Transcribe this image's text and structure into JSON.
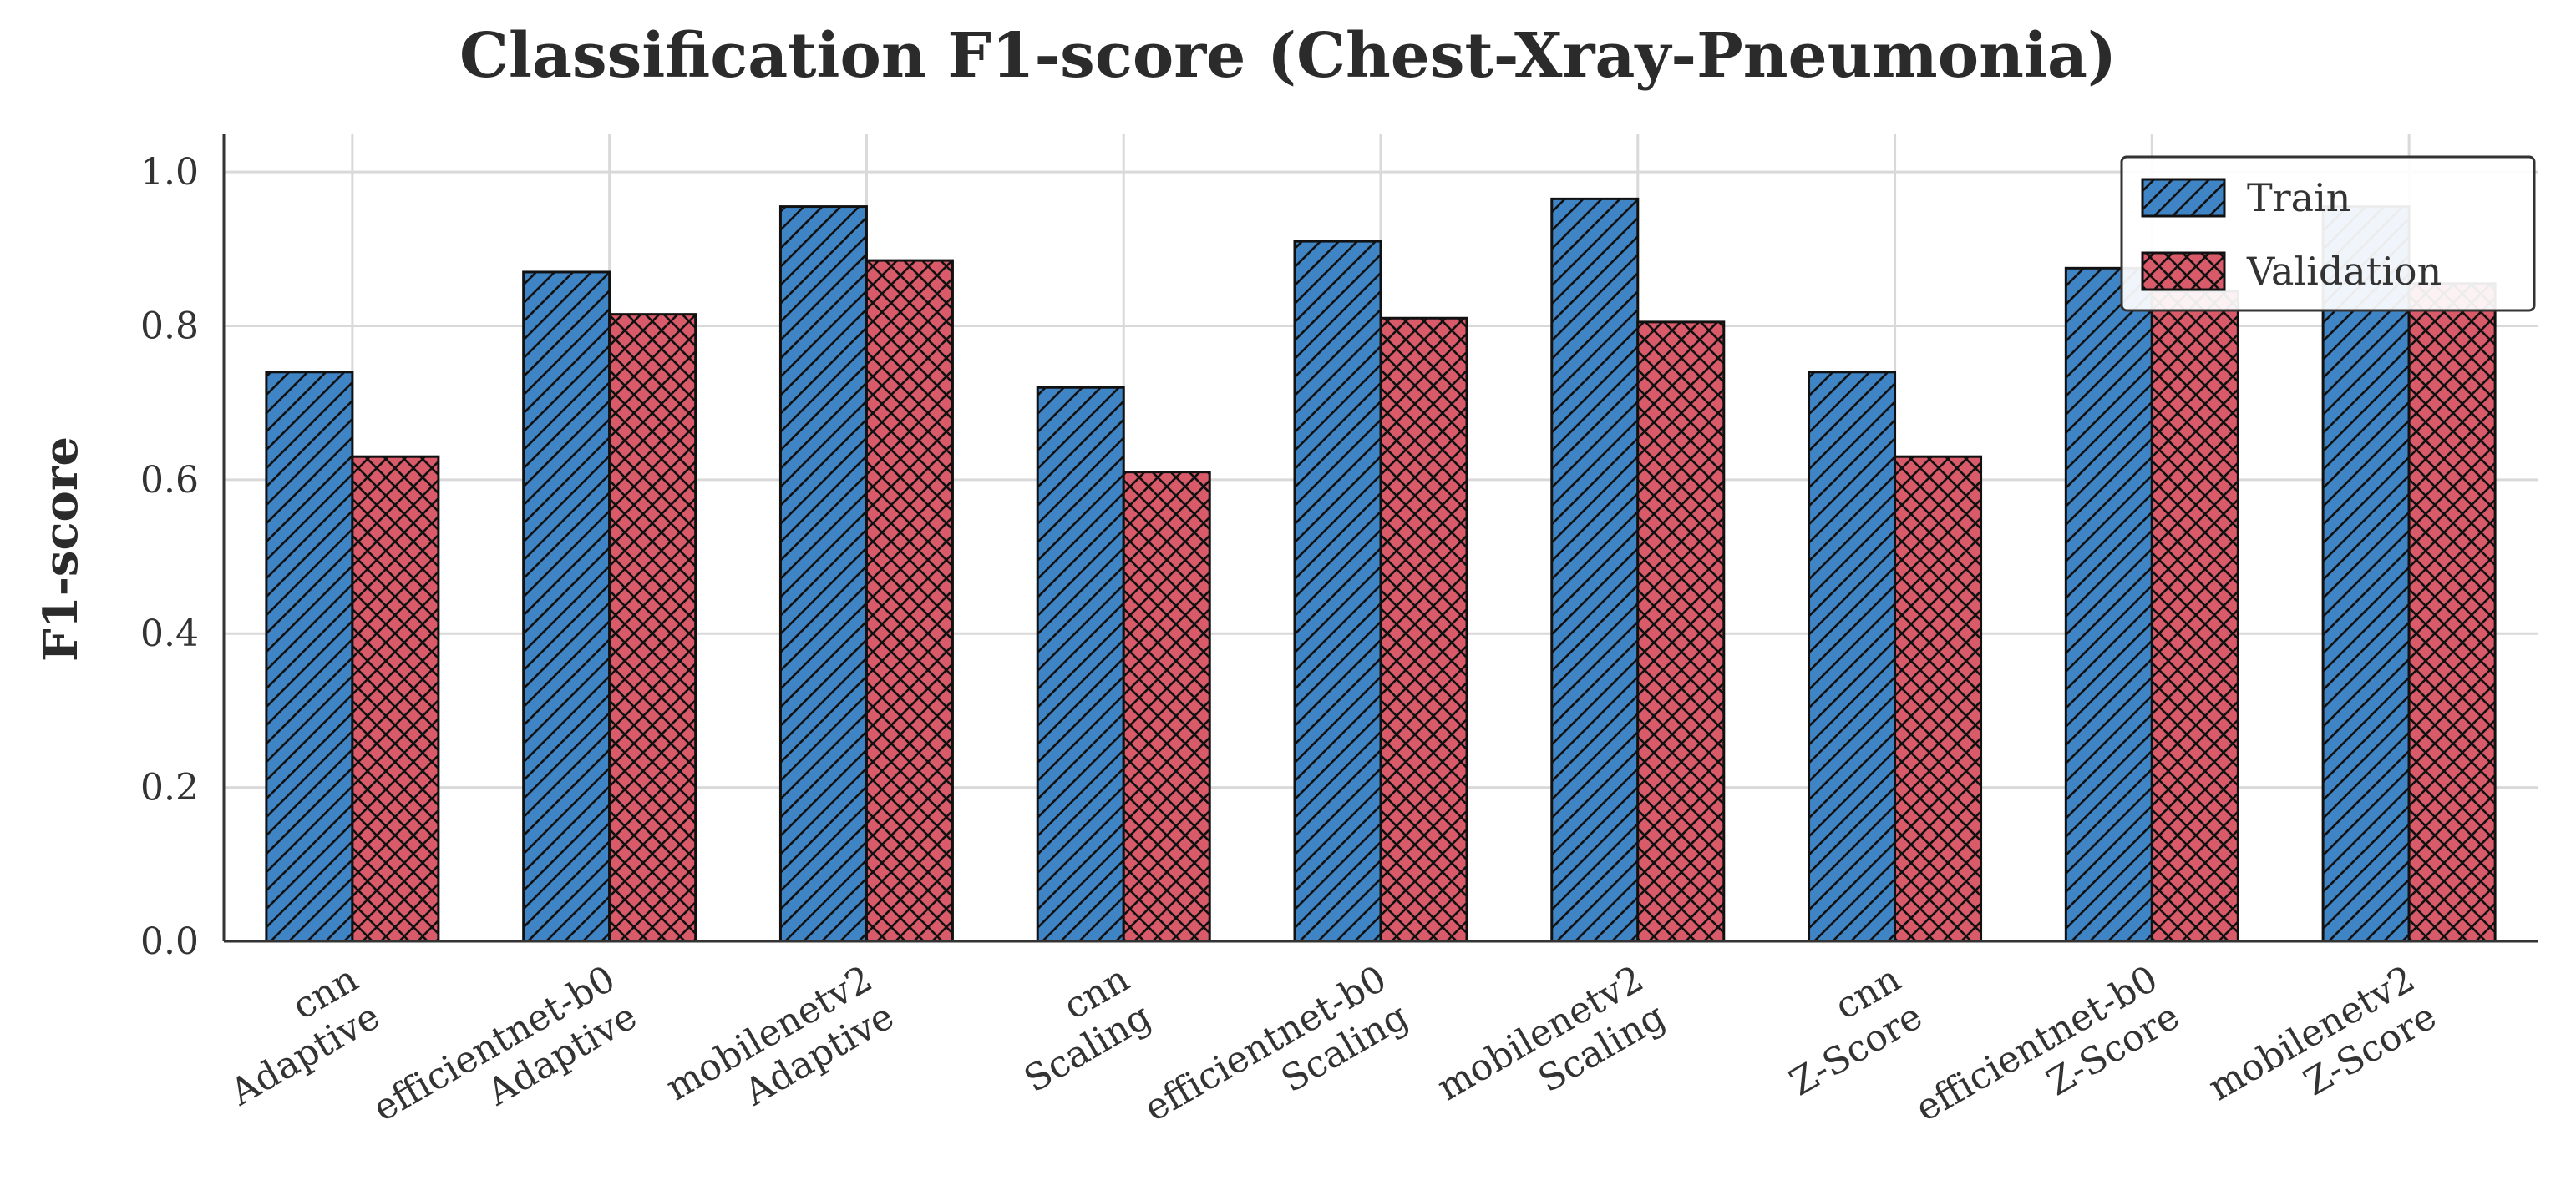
{
  "chart_data": {
    "type": "bar",
    "title": "Classification F1-score (Chest-Xray-Pneumonia)",
    "xlabel": "",
    "ylabel": "F1-score",
    "ylim": [
      0,
      1.05
    ],
    "yticks": [
      "0.0",
      "0.2",
      "0.4",
      "0.6",
      "0.8",
      "1.0"
    ],
    "grid": true,
    "legend_position": "top-right",
    "categories": [
      [
        "cnn",
        "Adaptive"
      ],
      [
        "efficientnet-b0",
        "Adaptive"
      ],
      [
        "mobilenetv2",
        "Adaptive"
      ],
      [
        "cnn",
        "Scaling"
      ],
      [
        "efficientnet-b0",
        "Scaling"
      ],
      [
        "mobilenetv2",
        "Scaling"
      ],
      [
        "cnn",
        "Z-Score"
      ],
      [
        "efficientnet-b0",
        "Z-Score"
      ],
      [
        "mobilenetv2",
        "Z-Score"
      ]
    ],
    "series": [
      {
        "name": "Train",
        "color": "#3f84c4",
        "hatch": "diagonal",
        "values": [
          0.74,
          0.87,
          0.955,
          0.72,
          0.91,
          0.965,
          0.74,
          0.875,
          0.955
        ]
      },
      {
        "name": "Validation",
        "color": "#d95a69",
        "hatch": "crosshatch",
        "values": [
          0.63,
          0.815,
          0.885,
          0.61,
          0.81,
          0.805,
          0.63,
          0.845,
          0.855
        ]
      }
    ]
  }
}
